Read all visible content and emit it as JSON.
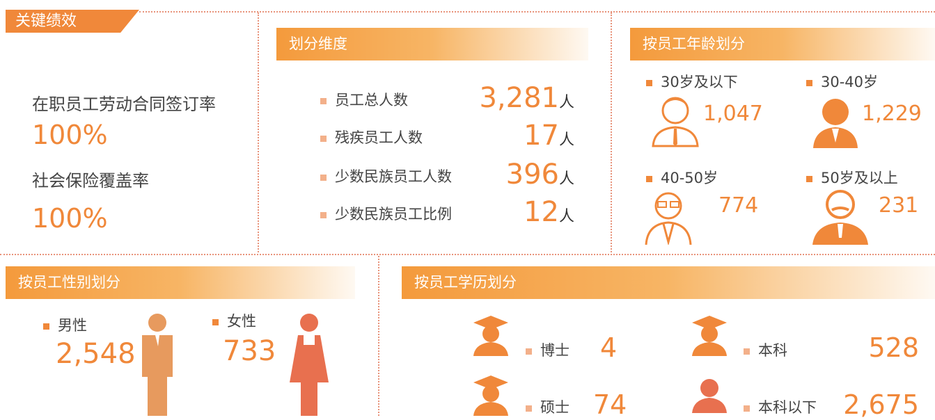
{
  "header": {
    "title": "关键绩效"
  },
  "kpis": [
    {
      "label": "在职员工劳动合同签订率",
      "value": "100%"
    },
    {
      "label": "社会保险覆盖率",
      "value": "100%"
    }
  ],
  "dimensions": {
    "title": "划分维度",
    "items": [
      {
        "label": "员工总人数",
        "value": "3,281",
        "unit": "人"
      },
      {
        "label": "残疾员工人数",
        "value": "17",
        "unit": "人"
      },
      {
        "label": "少数民族员工人数",
        "value": "396",
        "unit": "人"
      },
      {
        "label": "少数民族员工比例",
        "value": "12",
        "unit": "人"
      }
    ]
  },
  "age": {
    "title": "按员工年龄划分",
    "groups": [
      {
        "label": "30岁及以下",
        "value": "1,047"
      },
      {
        "label": "30-40岁",
        "value": "1,229"
      },
      {
        "label": "40-50岁",
        "value": "774"
      },
      {
        "label": "50岁及以上",
        "value": "231"
      }
    ]
  },
  "gender": {
    "title": "按员工性别划分",
    "groups": [
      {
        "label": "男性",
        "value": "2,548"
      },
      {
        "label": "女性",
        "value": "733"
      }
    ]
  },
  "education": {
    "title": "按员工学历划分",
    "groups": [
      {
        "label": "博士",
        "value": "4"
      },
      {
        "label": "硕士",
        "value": "74"
      },
      {
        "label": "本科",
        "value": "528"
      },
      {
        "label": "本科以下",
        "value": "2,675"
      }
    ]
  }
}
